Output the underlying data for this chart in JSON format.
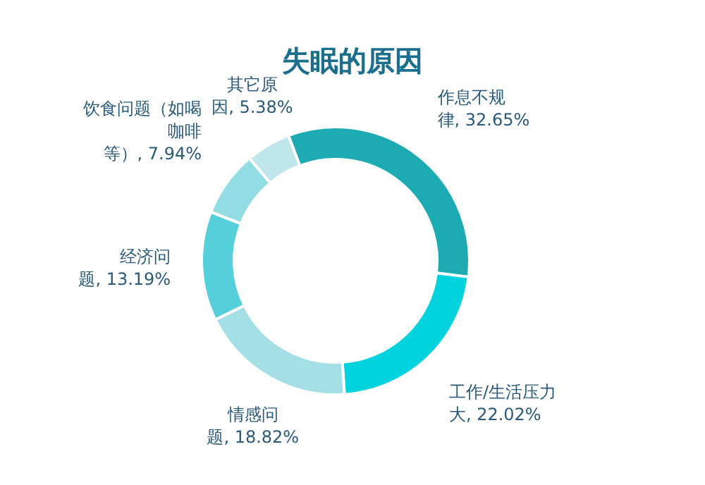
{
  "chart_data": {
    "type": "donut",
    "title": "失眠的原因",
    "categories": [
      "作息不规律",
      "工作/生活压力大",
      "情感问题",
      "经济问题",
      "饮食问题（如喝咖啡等）",
      "其它原因"
    ],
    "value_labels": [
      "32.65%",
      "22.02%",
      "18.82%",
      "13.19%",
      "7.94%",
      "5.38%"
    ],
    "values": [
      32.65,
      22.02,
      18.82,
      13.19,
      7.94,
      5.38
    ],
    "colors": [
      "#1cabb3",
      "#00d2de",
      "#a3dfe5",
      "#55cfd9",
      "#92dce3",
      "#bfe7eb"
    ]
  }
}
